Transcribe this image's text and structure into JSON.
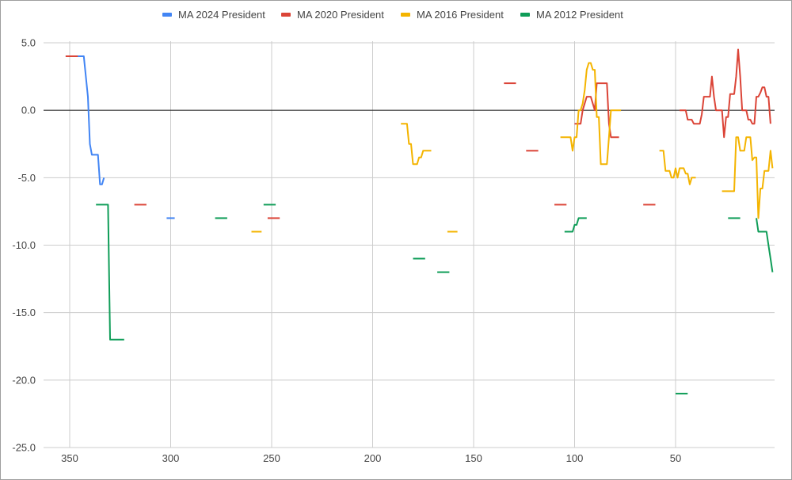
{
  "chart_data": {
    "type": "line",
    "title": "",
    "xlabel": "",
    "ylabel": "",
    "x_reversed": true,
    "xlim": [
      355,
      2
    ],
    "ylim": [
      -25,
      7
    ],
    "x_ticks": [
      350,
      300,
      250,
      200,
      150,
      100,
      50
    ],
    "x_tick_labels": [
      "350",
      "300",
      "250",
      "200",
      "150",
      "100",
      "50"
    ],
    "y_ticks": [
      5,
      0,
      -5,
      -10,
      -15,
      -20,
      -25
    ],
    "y_tick_labels": [
      "5.0",
      "0.0",
      "-5.0",
      "-10.0",
      "-15.0",
      "-20.0",
      "-25.0"
    ],
    "grid": true,
    "legend_position": "top",
    "series": [
      {
        "name": "MA 2024 President",
        "color": "#4285F4",
        "segments": [
          [
            [
              352,
              4
            ],
            [
              343,
              4
            ],
            [
              341,
              1
            ],
            [
              340,
              -2.5
            ],
            [
              339,
              -3.3
            ],
            [
              336,
              -3.3
            ],
            [
              335,
              -5.5
            ],
            [
              334,
              -5.5
            ],
            [
              333,
              -5
            ]
          ],
          [
            [
              302,
              -8
            ],
            [
              298,
              -8
            ]
          ]
        ]
      },
      {
        "name": "MA 2020 President",
        "color": "#DB4437",
        "segments": [
          [
            [
              352,
              4
            ],
            [
              346,
              4
            ]
          ],
          [
            [
              318,
              -7
            ],
            [
              312,
              -7
            ]
          ],
          [
            [
              252,
              -8
            ],
            [
              246,
              -8
            ]
          ],
          [
            [
              135,
              2
            ],
            [
              129,
              2
            ]
          ],
          [
            [
              124,
              -3
            ],
            [
              118,
              -3
            ]
          ],
          [
            [
              110,
              -7
            ],
            [
              104,
              -7
            ]
          ],
          [
            [
              100,
              -1
            ],
            [
              97,
              -1
            ],
            [
              96,
              0
            ],
            [
              94,
              1
            ],
            [
              92,
              1
            ],
            [
              90,
              0
            ],
            [
              89,
              2
            ],
            [
              84,
              2
            ],
            [
              83,
              -1
            ],
            [
              82,
              -2
            ],
            [
              78,
              -2
            ]
          ],
          [
            [
              66,
              -7
            ],
            [
              60,
              -7
            ]
          ],
          [
            [
              48,
              0
            ],
            [
              45,
              0
            ],
            [
              44,
              -0.7
            ],
            [
              42,
              -0.7
            ],
            [
              41,
              -1
            ],
            [
              38,
              -1
            ],
            [
              37,
              -0.3
            ],
            [
              36,
              1
            ],
            [
              33,
              1
            ],
            [
              32,
              2.5
            ],
            [
              31,
              1
            ],
            [
              30,
              0
            ],
            [
              27,
              0
            ],
            [
              26,
              -2
            ],
            [
              25,
              -0.5
            ],
            [
              24,
              -0.5
            ],
            [
              23,
              1.2
            ],
            [
              21,
              1.2
            ],
            [
              20,
              2.5
            ],
            [
              19,
              4.5
            ],
            [
              18,
              2.5
            ],
            [
              17,
              0
            ],
            [
              15,
              0
            ],
            [
              14,
              -0.7
            ],
            [
              13,
              -0.7
            ],
            [
              12,
              -1
            ],
            [
              11,
              -1
            ],
            [
              10,
              1
            ],
            [
              9,
              1
            ],
            [
              8,
              1.3
            ],
            [
              7,
              1.7
            ],
            [
              6,
              1.7
            ],
            [
              5,
              1
            ],
            [
              4,
              1
            ],
            [
              3,
              -1
            ]
          ]
        ]
      },
      {
        "name": "MA 2016 President",
        "color": "#F4B400",
        "segments": [
          [
            [
              260,
              -9
            ],
            [
              255,
              -9
            ]
          ],
          [
            [
              186,
              -1
            ],
            [
              183,
              -1
            ],
            [
              182,
              -2.5
            ],
            [
              181,
              -2.5
            ],
            [
              180,
              -4
            ],
            [
              178,
              -4
            ],
            [
              177,
              -3.5
            ],
            [
              176,
              -3.5
            ],
            [
              175,
              -3
            ],
            [
              171,
              -3
            ]
          ],
          [
            [
              163,
              -9
            ],
            [
              158,
              -9
            ]
          ],
          [
            [
              107,
              -2
            ],
            [
              102,
              -2
            ],
            [
              101,
              -3
            ],
            [
              100,
              -2
            ],
            [
              99,
              -2
            ],
            [
              98,
              0
            ],
            [
              97,
              0
            ],
            [
              96,
              0.5
            ],
            [
              95,
              1.5
            ],
            [
              94,
              3
            ],
            [
              93,
              3.5
            ],
            [
              92,
              3.5
            ],
            [
              91,
              3
            ],
            [
              90,
              3
            ],
            [
              89,
              -0.5
            ],
            [
              88,
              -0.5
            ],
            [
              87,
              -4
            ],
            [
              84,
              -4
            ],
            [
              83,
              -2
            ],
            [
              82,
              0
            ],
            [
              77,
              0
            ]
          ],
          [
            [
              58,
              -3
            ],
            [
              56,
              -3
            ],
            [
              55,
              -4.5
            ],
            [
              53,
              -4.5
            ],
            [
              52,
              -5
            ],
            [
              51,
              -5
            ],
            [
              50,
              -4.3
            ],
            [
              49,
              -5
            ],
            [
              48,
              -4.3
            ],
            [
              46,
              -4.3
            ],
            [
              45,
              -4.7
            ],
            [
              44,
              -4.7
            ],
            [
              43,
              -5.5
            ],
            [
              42,
              -5
            ],
            [
              40,
              -5
            ]
          ],
          [
            [
              27,
              -6
            ],
            [
              21,
              -6
            ],
            [
              20,
              -2
            ],
            [
              19,
              -2
            ],
            [
              18,
              -3
            ],
            [
              16,
              -3
            ],
            [
              15,
              -2
            ],
            [
              13,
              -2
            ],
            [
              12,
              -3.7
            ],
            [
              11,
              -3.5
            ],
            [
              10,
              -3.5
            ],
            [
              9,
              -8
            ],
            [
              8,
              -5.8
            ],
            [
              7,
              -5.8
            ],
            [
              6,
              -4.5
            ],
            [
              4,
              -4.5
            ],
            [
              3,
              -3
            ],
            [
              2,
              -4.3
            ]
          ]
        ]
      },
      {
        "name": "MA 2012 President",
        "color": "#0F9D58",
        "segments": [
          [
            [
              337,
              -7
            ],
            [
              331,
              -7
            ],
            [
              330,
              -17
            ],
            [
              323,
              -17
            ]
          ],
          [
            [
              278,
              -8
            ],
            [
              272,
              -8
            ]
          ],
          [
            [
              254,
              -7
            ],
            [
              248,
              -7
            ]
          ],
          [
            [
              180,
              -11
            ],
            [
              174,
              -11
            ]
          ],
          [
            [
              168,
              -12
            ],
            [
              162,
              -12
            ]
          ],
          [
            [
              105,
              -9
            ],
            [
              101,
              -9
            ],
            [
              100,
              -8.5
            ],
            [
              99,
              -8.5
            ],
            [
              98,
              -8
            ],
            [
              94,
              -8
            ]
          ],
          [
            [
              50,
              -21
            ],
            [
              44,
              -21
            ]
          ],
          [
            [
              24,
              -8
            ],
            [
              18,
              -8
            ]
          ],
          [
            [
              10,
              -8
            ],
            [
              9,
              -9
            ],
            [
              5,
              -9
            ],
            [
              4,
              -10
            ],
            [
              3,
              -11
            ],
            [
              2,
              -12
            ]
          ]
        ]
      }
    ]
  }
}
